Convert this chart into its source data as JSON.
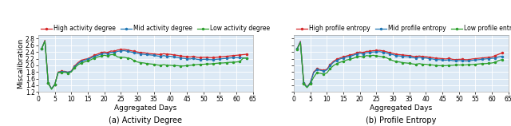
{
  "fig_width": 6.4,
  "fig_height": 1.58,
  "dpi": 100,
  "bg_color": "#dce9f5",
  "grid_color": "white",
  "subplot_titles": [
    "(a) Activity Degree",
    "(b) Profile Entropy"
  ],
  "xlabel": "Aggregated Days",
  "ylabel": "Miscalibration",
  "xlim": [
    0,
    65
  ],
  "ylim": [
    1.2,
    2.9
  ],
  "yticks": [
    1.2,
    1.4,
    1.6,
    1.8,
    2.0,
    2.2,
    2.4,
    2.6,
    2.8
  ],
  "xticks": [
    0,
    5,
    10,
    15,
    20,
    25,
    30,
    35,
    40,
    45,
    50,
    55,
    60,
    65
  ],
  "legend_labels_left": [
    "High activity degree",
    "Mid activity degree",
    "Low activity degree"
  ],
  "legend_labels_right": [
    "High profile entropy",
    "Mid profile entropy",
    "Low profile entropy"
  ],
  "line_colors": [
    "#d62728",
    "#1f77b4",
    "#2ca02c"
  ],
  "line_width": 0.9,
  "marker": "o",
  "marker_size": 1.5,
  "title_fontsize": 7.0,
  "axis_fontsize": 6.5,
  "tick_fontsize": 5.5,
  "legend_fontsize": 5.5,
  "days": [
    1,
    2,
    3,
    4,
    5,
    6,
    7,
    8,
    9,
    10,
    11,
    12,
    13,
    14,
    15,
    16,
    17,
    18,
    19,
    20,
    21,
    22,
    23,
    24,
    25,
    26,
    27,
    28,
    29,
    30,
    31,
    32,
    33,
    34,
    35,
    36,
    37,
    38,
    39,
    40,
    41,
    42,
    43,
    44,
    45,
    46,
    47,
    48,
    49,
    50,
    51,
    52,
    53,
    54,
    55,
    56,
    57,
    58,
    59,
    60,
    61,
    62,
    63
  ],
  "left_high": [
    2.5,
    2.75,
    1.48,
    1.3,
    1.43,
    1.8,
    1.82,
    1.82,
    1.79,
    1.83,
    1.98,
    2.08,
    2.15,
    2.18,
    2.2,
    2.25,
    2.3,
    2.34,
    2.38,
    2.4,
    2.38,
    2.43,
    2.42,
    2.46,
    2.47,
    2.48,
    2.46,
    2.44,
    2.42,
    2.4,
    2.38,
    2.38,
    2.36,
    2.35,
    2.34,
    2.33,
    2.32,
    2.35,
    2.33,
    2.33,
    2.31,
    2.3,
    2.28,
    2.27,
    2.26,
    2.25,
    2.27,
    2.24,
    2.23,
    2.24,
    2.24,
    2.23,
    2.23,
    2.24,
    2.25,
    2.26,
    2.27,
    2.28,
    2.29,
    2.3,
    2.31,
    2.32,
    2.33
  ],
  "left_mid": [
    2.5,
    2.73,
    1.47,
    1.3,
    1.43,
    1.79,
    1.8,
    1.81,
    1.79,
    1.82,
    1.96,
    2.05,
    2.12,
    2.15,
    2.18,
    2.22,
    2.27,
    2.3,
    2.34,
    2.36,
    2.34,
    2.39,
    2.38,
    2.42,
    2.43,
    2.44,
    2.42,
    2.4,
    2.38,
    2.36,
    2.34,
    2.33,
    2.32,
    2.31,
    2.3,
    2.28,
    2.27,
    2.29,
    2.27,
    2.27,
    2.25,
    2.24,
    2.22,
    2.21,
    2.2,
    2.19,
    2.21,
    2.18,
    2.17,
    2.18,
    2.18,
    2.17,
    2.17,
    2.18,
    2.19,
    2.2,
    2.21,
    2.22,
    2.23,
    2.23,
    2.23,
    2.22,
    2.22
  ],
  "left_low": [
    2.5,
    2.72,
    1.46,
    1.28,
    1.42,
    1.78,
    1.78,
    1.79,
    1.77,
    1.8,
    1.93,
    2.01,
    2.07,
    2.1,
    2.13,
    2.17,
    2.22,
    2.25,
    2.28,
    2.3,
    2.28,
    2.32,
    2.32,
    2.25,
    2.24,
    2.24,
    2.22,
    2.2,
    2.14,
    2.1,
    2.08,
    2.07,
    2.05,
    2.04,
    2.03,
    2.01,
    2.0,
    2.02,
    2.0,
    2.0,
    1.99,
    1.99,
    1.98,
    1.98,
    1.99,
    2.0,
    2.01,
    2.02,
    2.03,
    2.03,
    2.04,
    2.04,
    2.05,
    2.06,
    2.07,
    2.07,
    2.08,
    2.09,
    2.09,
    2.1,
    2.11,
    2.21,
    2.22
  ],
  "right_high": [
    2.5,
    2.72,
    1.48,
    1.35,
    1.48,
    1.8,
    1.89,
    1.87,
    1.85,
    1.88,
    2.02,
    2.12,
    2.18,
    2.22,
    2.25,
    2.28,
    2.31,
    2.33,
    2.37,
    2.4,
    2.38,
    2.42,
    2.42,
    2.44,
    2.44,
    2.45,
    2.43,
    2.41,
    2.38,
    2.36,
    2.33,
    2.32,
    2.31,
    2.3,
    2.29,
    2.27,
    2.26,
    2.28,
    2.26,
    2.26,
    2.24,
    2.23,
    2.21,
    2.21,
    2.2,
    2.19,
    2.21,
    2.18,
    2.17,
    2.18,
    2.18,
    2.17,
    2.17,
    2.19,
    2.2,
    2.21,
    2.22,
    2.23,
    2.24,
    2.25,
    2.29,
    2.33,
    2.37
  ],
  "right_mid": [
    2.5,
    2.7,
    1.46,
    1.35,
    1.47,
    1.78,
    1.87,
    1.85,
    1.83,
    1.86,
    1.99,
    2.09,
    2.15,
    2.19,
    2.22,
    2.25,
    2.27,
    2.3,
    2.34,
    2.36,
    2.34,
    2.38,
    2.38,
    2.4,
    2.4,
    2.41,
    2.39,
    2.37,
    2.34,
    2.32,
    2.29,
    2.28,
    2.27,
    2.26,
    2.25,
    2.23,
    2.22,
    2.24,
    2.22,
    2.22,
    2.2,
    2.19,
    2.17,
    2.17,
    2.16,
    2.15,
    2.17,
    2.14,
    2.13,
    2.14,
    2.14,
    2.13,
    2.13,
    2.15,
    2.16,
    2.17,
    2.18,
    2.19,
    2.2,
    2.21,
    2.22,
    2.25,
    2.27
  ],
  "right_low": [
    2.48,
    2.68,
    1.44,
    1.33,
    1.45,
    1.64,
    1.78,
    1.76,
    1.74,
    1.77,
    1.9,
    1.99,
    2.05,
    2.09,
    2.12,
    2.16,
    2.18,
    2.21,
    2.25,
    2.27,
    2.25,
    2.29,
    2.28,
    2.3,
    2.28,
    2.27,
    2.25,
    2.23,
    2.18,
    2.14,
    2.11,
    2.1,
    2.08,
    2.07,
    2.06,
    2.04,
    2.03,
    2.05,
    2.03,
    2.03,
    2.01,
    2.01,
    2.0,
    1.99,
    1.99,
    1.99,
    2.0,
    2.0,
    2.01,
    2.01,
    2.01,
    2.01,
    2.02,
    2.02,
    2.03,
    2.04,
    2.05,
    2.05,
    2.06,
    2.07,
    2.09,
    2.14,
    2.17
  ]
}
